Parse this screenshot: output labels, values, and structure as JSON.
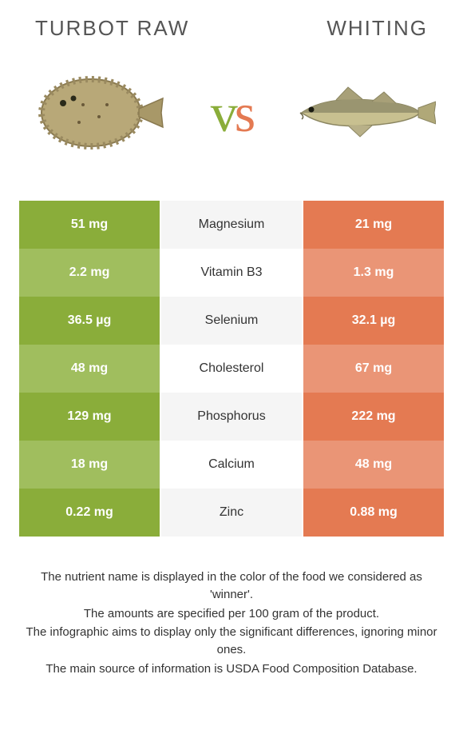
{
  "left_name": "Turbot raw",
  "right_name": "Whiting",
  "colors": {
    "left_a": "#8aad3a",
    "left_b": "#a0be5e",
    "right_a": "#e47a52",
    "right_b": "#ea9576",
    "mid_a": "#f5f5f5",
    "mid_b": "#ffffff"
  },
  "rows": [
    {
      "nutrient": "Magnesium",
      "left": "51 mg",
      "right": "21 mg",
      "winner": "left"
    },
    {
      "nutrient": "Vitamin B3",
      "left": "2.2 mg",
      "right": "1.3 mg",
      "winner": "left"
    },
    {
      "nutrient": "Selenium",
      "left": "36.5 µg",
      "right": "32.1 µg",
      "winner": "left"
    },
    {
      "nutrient": "Cholesterol",
      "left": "48 mg",
      "right": "67 mg",
      "winner": "right"
    },
    {
      "nutrient": "Phosphorus",
      "left": "129 mg",
      "right": "222 mg",
      "winner": "right"
    },
    {
      "nutrient": "Calcium",
      "left": "18 mg",
      "right": "48 mg",
      "winner": "right"
    },
    {
      "nutrient": "Zinc",
      "left": "0.22 mg",
      "right": "0.88 mg",
      "winner": "right"
    }
  ],
  "footer": [
    "The nutrient name is displayed in the color of the food we considered as 'winner'.",
    "The amounts are specified per 100 gram of the product.",
    "The infographic aims to display only the significant differences, ignoring minor ones.",
    "The main source of information is USDA Food Composition Database."
  ]
}
